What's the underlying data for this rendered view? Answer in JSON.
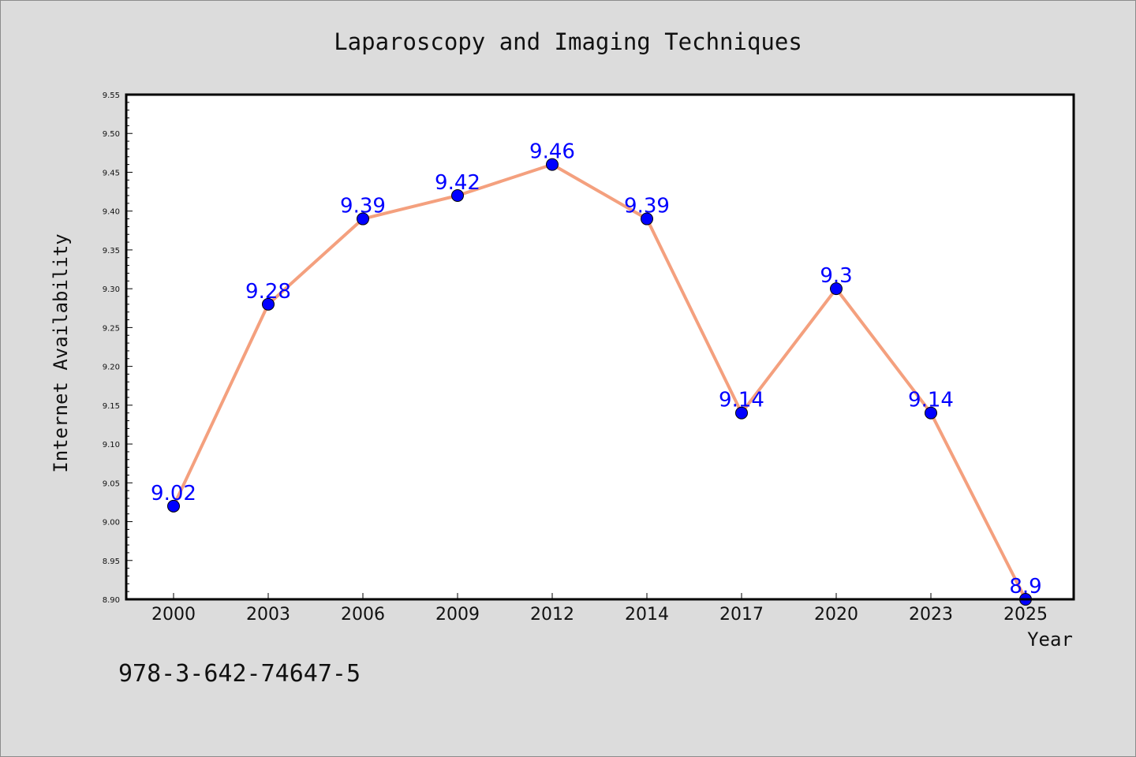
{
  "chart_data": {
    "type": "line",
    "title": "Laparoscopy and Imaging Techniques",
    "xlabel": "Year",
    "ylabel": "Internet Availability",
    "categories": [
      "2000",
      "2003",
      "2006",
      "2009",
      "2012",
      "2014",
      "2017",
      "2020",
      "2023",
      "2025"
    ],
    "series": [
      {
        "values": [
          9.02,
          9.28,
          9.39,
          9.42,
          9.46,
          9.39,
          9.14,
          9.3,
          9.14,
          8.9
        ],
        "data_labels": [
          "9.02",
          "9.28",
          "9.39",
          "9.42",
          "9.46",
          "9.39",
          "9.14",
          "9.3",
          "9.14",
          "8.9"
        ]
      }
    ],
    "ylim": [
      8.9,
      9.55
    ],
    "yticks": [
      "8.90",
      "8.95",
      "9.00",
      "9.05",
      "9.10",
      "9.15",
      "9.20",
      "9.25",
      "9.30",
      "9.35",
      "9.40",
      "9.45",
      "9.50",
      "9.55"
    ],
    "grid": false,
    "legend": "none",
    "colors": {
      "line": "#f4a07e",
      "marker": "#0000ff",
      "label": "#0000ff",
      "plot_bg": "#ffffff",
      "page_bg": "#dcdcdc"
    }
  },
  "footnote": "978-3-642-74647-5"
}
